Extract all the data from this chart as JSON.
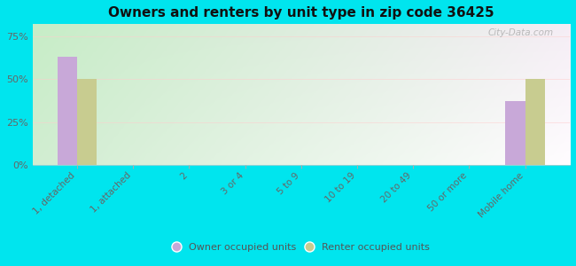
{
  "title": "Owners and renters by unit type in zip code 36425",
  "categories": [
    "1, detached",
    "1, attached",
    "2",
    "3 or 4",
    "5 to 9",
    "10 to 19",
    "20 to 49",
    "50 or more",
    "Mobile home"
  ],
  "owner_values": [
    63,
    0,
    0,
    0,
    0,
    0,
    0,
    0,
    37
  ],
  "renter_values": [
    50,
    0,
    0,
    0,
    0,
    0,
    0,
    0,
    50
  ],
  "owner_color": "#c8a8d8",
  "renter_color": "#c8cc90",
  "background_color": "#00e5ee",
  "plot_bg_top_left": "#c8e8c0",
  "plot_bg_bottom_right": "#f0f8e8",
  "yticks": [
    0,
    25,
    50,
    75
  ],
  "ylim": [
    0,
    82
  ],
  "bar_width": 0.35,
  "watermark": "City-Data.com",
  "xlabel_fontsize": 7.5,
  "ylabel_fontsize": 8,
  "title_fontsize": 11
}
